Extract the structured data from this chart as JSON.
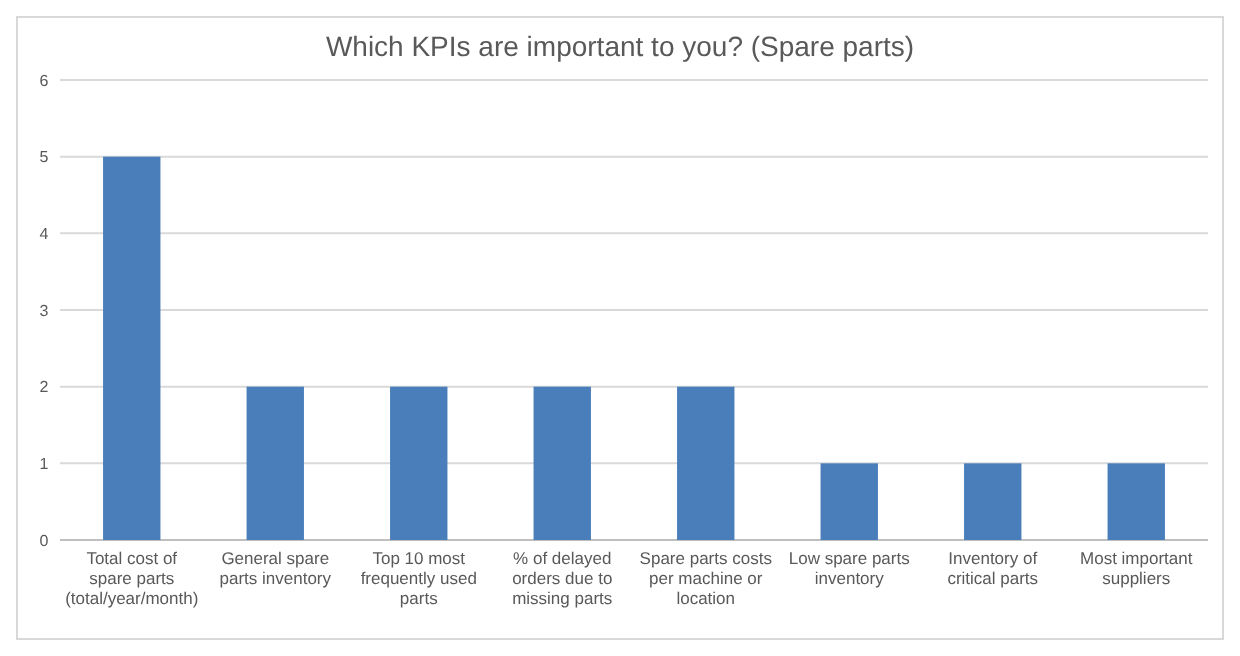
{
  "chart_data": {
    "type": "bar",
    "title": "Which KPIs are important to you? (Spare parts)",
    "categories": [
      "Total cost of spare parts (total/year/month)",
      "General spare parts inventory",
      "Top 10 most frequently used parts",
      "% of delayed orders due to missing parts",
      "Spare parts costs per machine or location",
      "Low spare parts inventory",
      "Inventory of critical parts",
      "Most important suppliers"
    ],
    "values": [
      5,
      2,
      2,
      2,
      2,
      1,
      1,
      1
    ],
    "color": "#4a7ebb",
    "ylim": [
      0,
      6
    ],
    "yticks": [
      0,
      1,
      2,
      3,
      4,
      5,
      6
    ],
    "grid": "y"
  }
}
